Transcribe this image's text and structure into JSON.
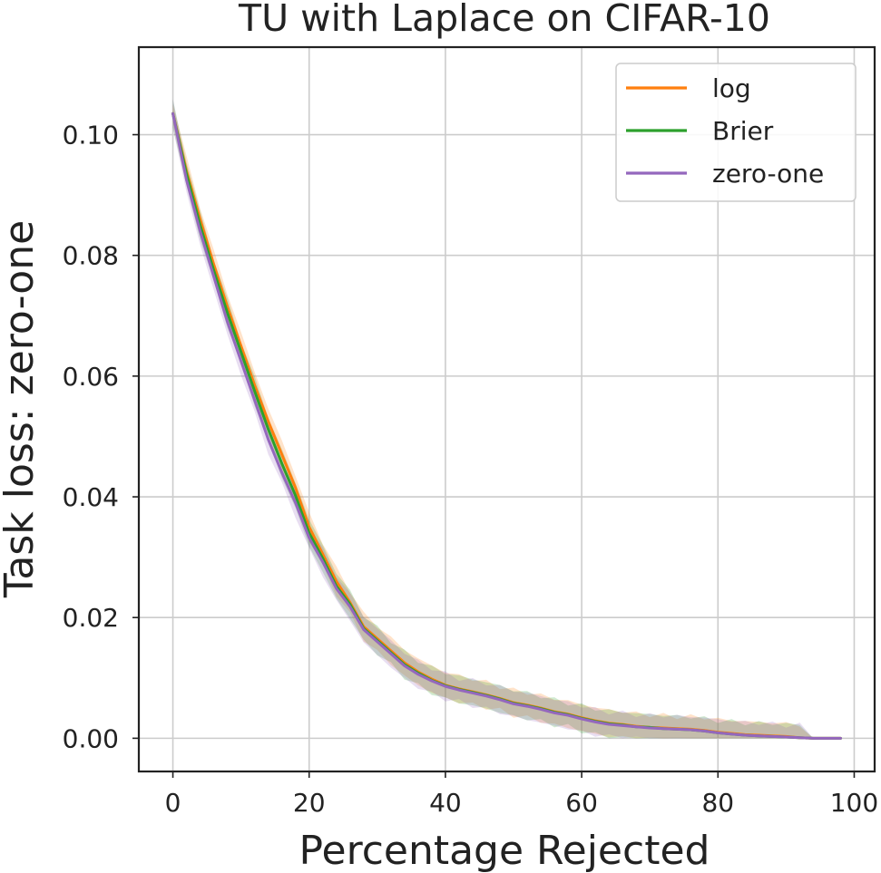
{
  "chart_data": {
    "type": "line",
    "title": "TU with Laplace on CIFAR-10",
    "xlabel": "Percentage Rejected",
    "ylabel": "Task loss: zero-one",
    "xlim": [
      -5,
      103
    ],
    "ylim": [
      -0.0055,
      0.1145
    ],
    "xticks": [
      0,
      20,
      40,
      60,
      80,
      100
    ],
    "xtick_labels": [
      "0",
      "20",
      "40",
      "60",
      "80",
      "100"
    ],
    "yticks": [
      0.0,
      0.02,
      0.04,
      0.06,
      0.08,
      0.1
    ],
    "ytick_labels": [
      "0.00",
      "0.02",
      "0.04",
      "0.06",
      "0.08",
      "0.10"
    ],
    "grid": true,
    "legend_position": "top-right",
    "x": [
      0,
      2,
      4,
      6,
      8,
      10,
      12,
      14,
      16,
      18,
      20,
      22,
      24,
      26,
      28,
      30,
      32,
      34,
      36,
      38,
      40,
      42,
      44,
      46,
      48,
      50,
      52,
      54,
      56,
      58,
      60,
      62,
      64,
      66,
      68,
      70,
      72,
      74,
      76,
      78,
      80,
      82,
      84,
      86,
      88,
      90,
      92,
      94,
      96,
      98
    ],
    "series": [
      {
        "name": "log",
        "color": "#ff7f0e",
        "values": [
          0.1035,
          0.094,
          0.086,
          0.0785,
          0.0715,
          0.065,
          0.0585,
          0.0525,
          0.047,
          0.0415,
          0.035,
          0.0305,
          0.026,
          0.0225,
          0.0185,
          0.0165,
          0.0145,
          0.0125,
          0.011,
          0.0098,
          0.0088,
          0.0082,
          0.0077,
          0.0072,
          0.0066,
          0.0059,
          0.0055,
          0.005,
          0.0044,
          0.004,
          0.0034,
          0.0029,
          0.0025,
          0.0023,
          0.002,
          0.0018,
          0.0017,
          0.0016,
          0.0015,
          0.0013,
          0.001,
          0.0008,
          0.0006,
          0.0005,
          0.0004,
          0.0003,
          0.0001,
          0.0,
          0.0,
          0.0
        ],
        "band": 0.0025
      },
      {
        "name": "Brier",
        "color": "#2ca02c",
        "values": [
          0.1035,
          0.0935,
          0.085,
          0.0775,
          0.0705,
          0.064,
          0.0575,
          0.0512,
          0.0455,
          0.0402,
          0.034,
          0.0298,
          0.0252,
          0.0222,
          0.0182,
          0.0162,
          0.0142,
          0.0122,
          0.0108,
          0.0096,
          0.0087,
          0.0081,
          0.0076,
          0.0071,
          0.0065,
          0.0058,
          0.0054,
          0.0049,
          0.0043,
          0.0039,
          0.0033,
          0.0028,
          0.0024,
          0.0022,
          0.0019,
          0.0018,
          0.0016,
          0.0015,
          0.0014,
          0.0012,
          0.0009,
          0.0007,
          0.0005,
          0.0004,
          0.0003,
          0.0002,
          0.0001,
          0.0,
          0.0,
          0.0
        ],
        "band": 0.0025
      },
      {
        "name": "zero-one",
        "color": "#9467bd",
        "values": [
          0.1035,
          0.0925,
          0.084,
          0.0765,
          0.069,
          0.0625,
          0.056,
          0.0495,
          0.044,
          0.039,
          0.0332,
          0.0292,
          0.0248,
          0.0218,
          0.018,
          0.016,
          0.014,
          0.012,
          0.0106,
          0.0095,
          0.0086,
          0.008,
          0.0075,
          0.007,
          0.0064,
          0.0057,
          0.0053,
          0.0048,
          0.0042,
          0.0038,
          0.0032,
          0.0027,
          0.0023,
          0.0021,
          0.0019,
          0.0017,
          0.0016,
          0.0015,
          0.0014,
          0.0012,
          0.0009,
          0.0007,
          0.0005,
          0.0004,
          0.0003,
          0.0002,
          0.0001,
          0.0,
          0.0,
          0.0
        ],
        "band": 0.0025
      }
    ]
  }
}
